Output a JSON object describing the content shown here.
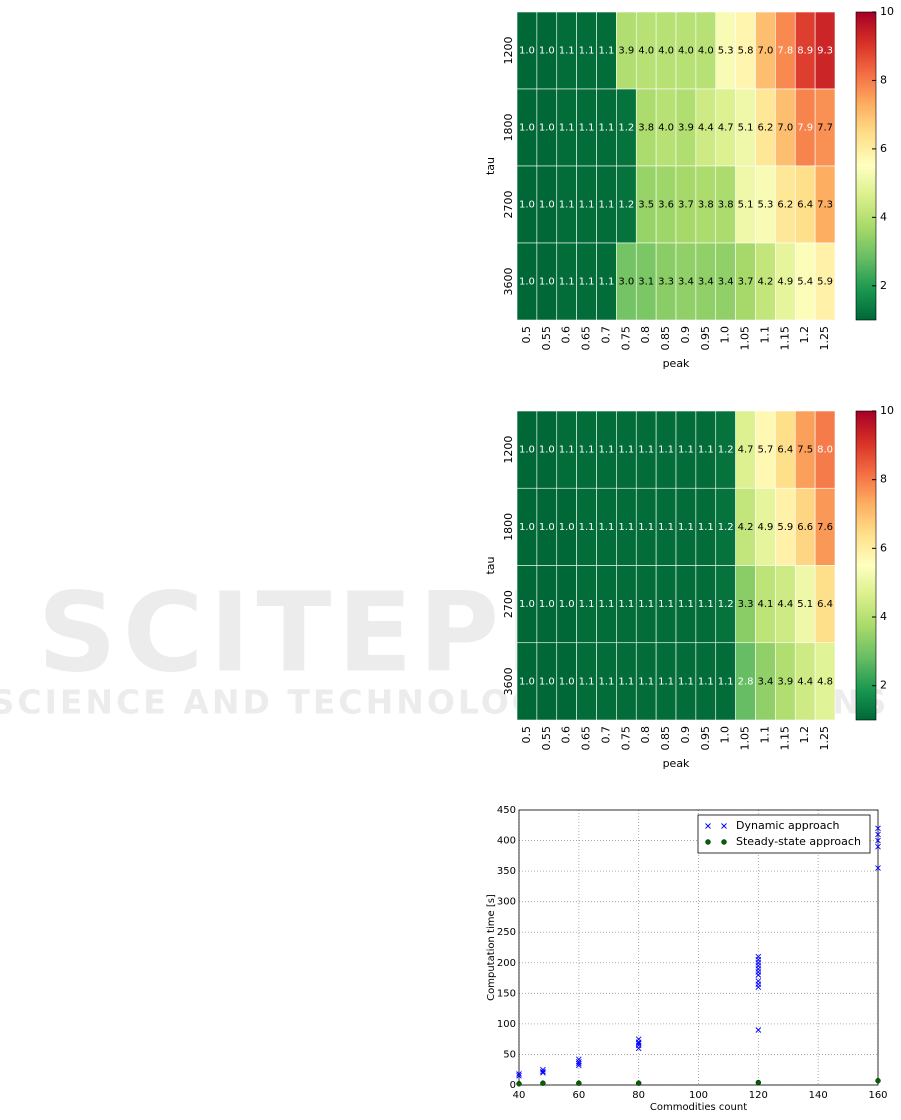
{
  "watermark": {
    "title": "SCITEPRESS",
    "subtitle": "SCIENCE AND TECHNOLOGY PUBLICATIONS"
  },
  "chart_data": [
    {
      "type": "heatmap",
      "xlabel": "peak",
      "ylabel": "tau",
      "categories": [
        "0.5",
        "0.55",
        "0.6",
        "0.65",
        "0.7",
        "0.75",
        "0.8",
        "0.85",
        "0.9",
        "0.95",
        "1.0",
        "1.05",
        "1.1",
        "1.15",
        "1.2",
        "1.25"
      ],
      "rows": [
        1200,
        1800,
        2700,
        3600
      ],
      "values": [
        [
          1.0,
          1.0,
          1.1,
          1.1,
          1.1,
          3.9,
          4.0,
          4.0,
          4.0,
          4.0,
          5.3,
          5.8,
          7.0,
          7.8,
          8.9,
          9.3
        ],
        [
          1.0,
          1.0,
          1.1,
          1.1,
          1.1,
          1.2,
          3.8,
          4.0,
          3.9,
          4.4,
          4.7,
          5.1,
          6.2,
          7.0,
          7.9,
          7.7
        ],
        [
          1.0,
          1.0,
          1.1,
          1.1,
          1.1,
          1.2,
          3.5,
          3.6,
          3.7,
          3.8,
          3.8,
          5.1,
          5.3,
          6.2,
          6.4,
          7.3
        ],
        [
          1.0,
          1.0,
          1.1,
          1.1,
          1.1,
          3.0,
          3.1,
          3.3,
          3.4,
          3.4,
          3.4,
          3.7,
          4.2,
          4.9,
          5.4,
          5.9
        ]
      ],
      "value_labels": [
        [
          "1.0",
          "1.0",
          "1.1",
          "1.1",
          "1.1",
          "3.9",
          "4.0",
          "4.0",
          "4.0",
          "4.0",
          "5.3",
          "5.8",
          "7.0",
          "7.8",
          "8.9",
          "9.3"
        ],
        [
          "1.0",
          "1.0",
          "1.1",
          "1.1",
          "1.1",
          "1.2",
          "3.8",
          "4.0",
          "3.9",
          "4.4",
          "4.7",
          "5.1",
          "6.2",
          "7.0",
          "7.9",
          "7.7"
        ],
        [
          "1.0",
          "1.0",
          "1.1",
          "1.1",
          "1.1",
          "1.2",
          "3.5",
          "3.6",
          "3.7",
          "3.8",
          "3.8",
          "5.1",
          "5.3",
          "6.2",
          "6.4",
          "7.3"
        ],
        [
          "1.0",
          "1.0",
          "1.1",
          "1.1",
          "1.1",
          "3.0",
          "3.1",
          "3.3",
          "3.4",
          "3.4",
          "3.4",
          "3.7",
          "4.2",
          "4.9",
          "5.4",
          "5.9"
        ]
      ],
      "clim": [
        1,
        10
      ],
      "cticks": [
        2,
        4,
        6,
        8,
        10
      ],
      "colorscale": [
        "#006837",
        "#1a9850",
        "#66bd63",
        "#a6d96a",
        "#d9ef8b",
        "#ffffbf",
        "#fee08b",
        "#fdae61",
        "#f46d43",
        "#d73027",
        "#a50026"
      ]
    },
    {
      "type": "heatmap",
      "xlabel": "peak",
      "ylabel": "tau",
      "categories": [
        "0.5",
        "0.55",
        "0.6",
        "0.65",
        "0.7",
        "0.75",
        "0.8",
        "0.85",
        "0.9",
        "0.95",
        "1.0",
        "1.05",
        "1.1",
        "1.15",
        "1.2",
        "1.25"
      ],
      "rows": [
        1200,
        1800,
        2700,
        3600
      ],
      "values": [
        [
          1.0,
          1.0,
          1.1,
          1.1,
          1.1,
          1.1,
          1.1,
          1.1,
          1.1,
          1.1,
          1.2,
          4.7,
          5.7,
          6.4,
          7.5,
          8.0
        ],
        [
          1.0,
          1.0,
          1.0,
          1.1,
          1.1,
          1.1,
          1.1,
          1.1,
          1.1,
          1.1,
          1.2,
          4.2,
          4.9,
          5.9,
          6.6,
          7.6
        ],
        [
          1.0,
          1.0,
          1.0,
          1.1,
          1.1,
          1.1,
          1.1,
          1.1,
          1.1,
          1.1,
          1.2,
          3.3,
          4.1,
          4.4,
          5.1,
          6.4
        ],
        [
          1.0,
          1.0,
          1.0,
          1.1,
          1.1,
          1.1,
          1.1,
          1.1,
          1.1,
          1.1,
          1.1,
          2.8,
          3.4,
          3.9,
          4.4,
          4.8
        ]
      ],
      "value_labels": [
        [
          "1.0",
          "1.0",
          "1.1",
          "1.1",
          "1.1",
          "1.1",
          "1.1",
          "1.1",
          "1.1",
          "1.1",
          "1.2",
          "4.7",
          "5.7",
          "6.4",
          "7.5",
          "8.0"
        ],
        [
          "1.0",
          "1.0",
          "1.0",
          "1.1",
          "1.1",
          "1.1",
          "1.1",
          "1.1",
          "1.1",
          "1.1",
          "1.2",
          "4.2",
          "4.9",
          "5.9",
          "6.6",
          "7.6"
        ],
        [
          "1.0",
          "1.0",
          "1.0",
          "1.1",
          "1.1",
          "1.1",
          "1.1",
          "1.1",
          "1.1",
          "1.1",
          "1.2",
          "3.3",
          "4.1",
          "4.4",
          "5.1",
          "6.4"
        ],
        [
          "1.0",
          "1.0",
          "1.0",
          "1.1",
          "1.1",
          "1.1",
          "1.1",
          "1.1",
          "1.1",
          "1.1",
          "1.1",
          "2.8",
          "3.4",
          "3.9",
          "4.4",
          "4.8"
        ]
      ],
      "clim": [
        1,
        10
      ],
      "cticks": [
        2,
        4,
        6,
        8,
        10
      ],
      "colorscale": [
        "#006837",
        "#1a9850",
        "#66bd63",
        "#a6d96a",
        "#d9ef8b",
        "#ffffbf",
        "#fee08b",
        "#fdae61",
        "#f46d43",
        "#d73027",
        "#a50026"
      ]
    },
    {
      "type": "scatter",
      "xlabel": "Commodities count",
      "ylabel": "Computation time [s]",
      "xlim": [
        40,
        160
      ],
      "xticks": [
        40,
        60,
        80,
        100,
        120,
        140,
        160
      ],
      "ylim": [
        0,
        450
      ],
      "yticks": [
        0,
        50,
        100,
        150,
        200,
        250,
        300,
        350,
        400,
        450
      ],
      "grid": true,
      "legend": "upper right",
      "series": [
        {
          "name": "Dynamic approach",
          "color": "#0000ff",
          "marker": "x",
          "x": [
            40,
            40,
            48,
            48,
            48,
            60,
            60,
            60,
            60,
            80,
            80,
            80,
            80,
            80,
            120,
            120,
            120,
            120,
            120,
            120,
            120,
            120,
            120,
            120,
            120,
            160,
            160,
            160,
            160,
            160
          ],
          "values": [
            15,
            18,
            20,
            25,
            22,
            32,
            38,
            42,
            35,
            60,
            65,
            70,
            75,
            68,
            90,
            160,
            165,
            170,
            180,
            185,
            190,
            195,
            200,
            205,
            210,
            355,
            390,
            400,
            410,
            420
          ]
        },
        {
          "name": "Steady-state approach",
          "color": "#006400",
          "marker": "o",
          "x": [
            40,
            48,
            60,
            80,
            120,
            160
          ],
          "values": [
            2,
            3,
            3,
            3,
            4,
            7
          ]
        }
      ]
    }
  ]
}
